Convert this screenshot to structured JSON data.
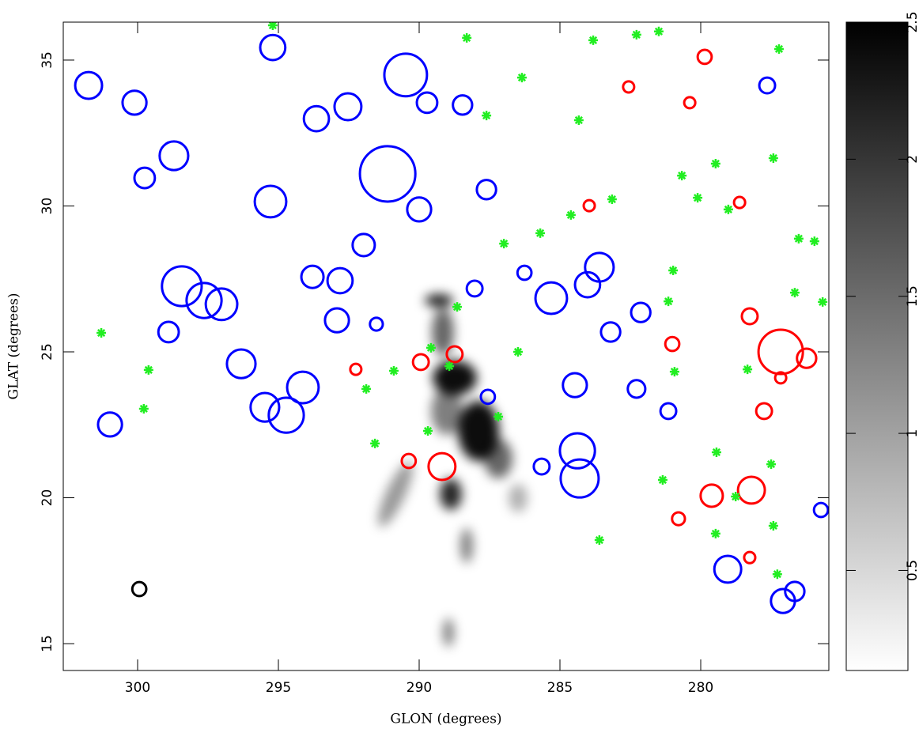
{
  "chart_data": {
    "type": "scatter",
    "xlabel": "GLON (degrees)",
    "ylabel": "GLAT (degrees)",
    "xlim": [
      302.64,
      275.45
    ],
    "ylim": [
      14.08,
      36.3
    ],
    "xticks": [
      300,
      295,
      290,
      285,
      280
    ],
    "yticks": [
      15,
      20,
      25,
      30,
      35
    ],
    "series": [
      {
        "color": "#0000ff",
        "marker": "circle",
        "x": [
          290.48,
          295.2,
          291.12,
          290.0,
          298.43,
          297.64,
          297.02,
          294.72,
          295.48,
          294.13,
          300.98,
          284.38,
          284.3,
          284.47,
          288.03,
          279.04,
          277.08,
          276.66,
          295.28,
          293.79,
          292.81,
          291.97,
          288.46,
          283.6,
          282.13,
          283.2,
          282.28,
          298.71,
          301.74,
          299.75,
          292.92,
          285.31,
          284.02,
          281.15,
          287.56,
          296.32,
          292.53,
          293.65,
          300.11,
          285.65,
          275.73,
          277.64,
          298.9,
          291.52,
          286.26,
          287.61,
          289.72
        ],
        "y": [
          34.49,
          35.43,
          31.1,
          29.88,
          27.25,
          26.76,
          26.63,
          22.83,
          23.1,
          23.78,
          22.51,
          21.61,
          20.66,
          23.86,
          27.17,
          17.55,
          16.46,
          16.79,
          30.15,
          27.57,
          27.44,
          28.66,
          33.46,
          27.9,
          26.35,
          25.68,
          23.73,
          31.72,
          34.13,
          30.96,
          26.08,
          26.84,
          27.3,
          22.97,
          23.46,
          24.59,
          33.4,
          32.99,
          33.54,
          21.07,
          19.58,
          34.13,
          25.68,
          25.95,
          27.71,
          30.56,
          33.54
        ],
        "sizes": [
          0.73,
          0.43,
          0.95,
          0.41,
          0.68,
          0.6,
          0.54,
          0.6,
          0.49,
          0.54,
          0.41,
          0.6,
          0.65,
          0.41,
          0.27,
          0.46,
          0.41,
          0.33,
          0.54,
          0.38,
          0.43,
          0.38,
          0.33,
          0.49,
          0.33,
          0.33,
          0.3,
          0.49,
          0.46,
          0.35,
          0.41,
          0.54,
          0.43,
          0.27,
          0.24,
          0.49,
          0.46,
          0.43,
          0.41,
          0.27,
          0.24,
          0.27,
          0.35,
          0.22,
          0.24,
          0.33,
          0.35
        ]
      },
      {
        "color": "#ff0000",
        "marker": "circle",
        "x": [
          277.16,
          278.2,
          289.19,
          279.61,
          278.26,
          281.01,
          288.74,
          289.94,
          290.37,
          279.86,
          277.75,
          280.79,
          278.62,
          283.96,
          292.25,
          277.16,
          276.24,
          282.56,
          280.39,
          278.26
        ],
        "y": [
          25.0,
          20.26,
          21.07,
          20.07,
          26.22,
          25.27,
          24.92,
          24.65,
          21.26,
          35.11,
          22.97,
          19.28,
          30.12,
          30.01,
          24.4,
          24.11,
          24.78,
          34.08,
          33.54,
          17.95
        ],
        "sizes": [
          0.76,
          0.46,
          0.46,
          0.38,
          0.27,
          0.24,
          0.27,
          0.27,
          0.24,
          0.24,
          0.27,
          0.22,
          0.19,
          0.19,
          0.19,
          0.19,
          0.33,
          0.19,
          0.19,
          0.19
        ]
      },
      {
        "color": "#22ee22",
        "marker": "asterisk",
        "x": [
          295.2,
          288.31,
          283.82,
          282.28,
          281.49,
          286.35,
          287.61,
          284.33,
          279.47,
          280.67,
          280.11,
          279.02,
          283.15,
          284.61,
          285.7,
          286.99,
          288.65,
          289.58,
          290.9,
          291.88,
          291.57,
          289.69,
          288.93,
          287.19,
          283.6,
          281.35,
          279.44,
          278.76,
          279.47,
          277.42,
          277.28,
          277.5,
          276.52,
          275.96,
          276.66,
          275.67,
          278.34,
          280.93,
          281.15,
          280.98,
          301.29,
          299.61,
          299.78,
          286.49,
          277.22,
          277.42
        ],
        "y": [
          36.19,
          35.76,
          35.68,
          35.87,
          35.98,
          34.4,
          33.1,
          32.94,
          31.45,
          31.04,
          30.28,
          29.88,
          30.23,
          29.69,
          29.07,
          28.71,
          26.54,
          25.14,
          24.35,
          23.73,
          21.86,
          22.29,
          24.51,
          22.78,
          18.55,
          20.61,
          21.56,
          20.04,
          18.77,
          19.04,
          17.38,
          21.15,
          28.88,
          28.79,
          27.03,
          26.71,
          24.4,
          24.32,
          26.73,
          27.79,
          25.65,
          24.38,
          23.05,
          25.0,
          35.38,
          31.64
        ]
      },
      {
        "color": "#000000",
        "marker": "circle",
        "x": [
          299.94
        ],
        "y": [
          16.87
        ],
        "sizes": [
          0.24
        ]
      }
    ],
    "colorbar": {
      "clim": [
        0.135,
        2.5
      ],
      "ticks": [
        0.5,
        1,
        1.5,
        2,
        2.5
      ]
    }
  }
}
